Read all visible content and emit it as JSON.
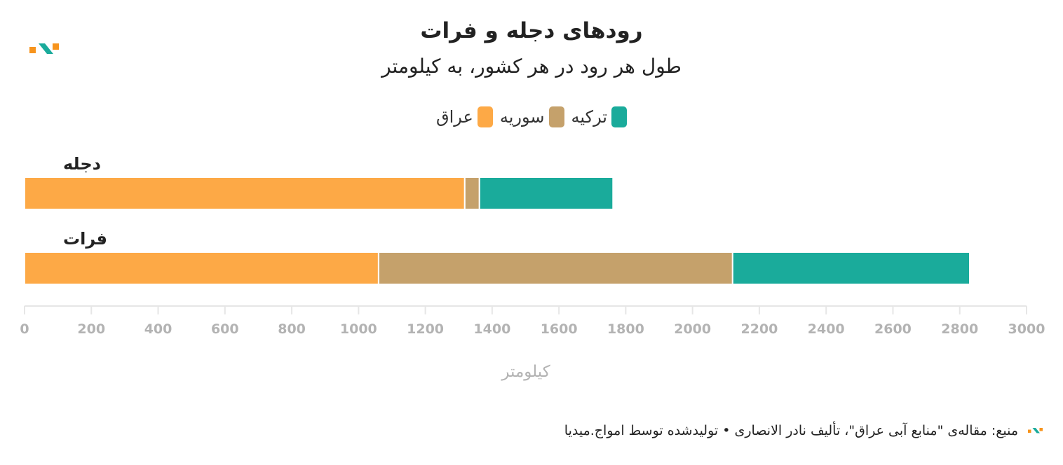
{
  "title": "رودهای دجله و فرات",
  "subtitle": "طول هر رود در هر کشور، به کیلومتر",
  "legend": [
    {
      "label": "ترکیه",
      "color": "#1aab9b"
    },
    {
      "label": "سوریه",
      "color": "#c5a16b"
    },
    {
      "label": "عراق",
      "color": "#fda946"
    }
  ],
  "footer": {
    "text": "منبع: مقاله‌ی \"منابع آبی عراق\"، تألیف نادر الانصاری • تولیدشده توسط امواج.میدیا"
  },
  "chart_data": {
    "type": "bar",
    "orientation": "horizontal",
    "stacked": true,
    "title": "رودهای دجله و فرات",
    "subtitle": "طول هر رود در هر کشور، به کیلومتر",
    "categories": [
      "دجله",
      "فرات"
    ],
    "series": [
      {
        "name": "عراق",
        "color": "#fda946",
        "values": [
          1318,
          1060
        ]
      },
      {
        "name": "سوریه",
        "color": "#c5a16b",
        "values": [
          44,
          1060
        ]
      },
      {
        "name": "ترکیه",
        "color": "#1aab9b",
        "values": [
          400,
          710
        ]
      }
    ],
    "xlabel": "کیلومتر",
    "xlim": [
      0,
      3000
    ],
    "xticks": [
      0,
      200,
      400,
      600,
      800,
      1000,
      1200,
      1400,
      1600,
      1800,
      2000,
      2200,
      2400,
      2600,
      2800,
      3000
    ],
    "grid": false,
    "legend_position": "top-center"
  }
}
